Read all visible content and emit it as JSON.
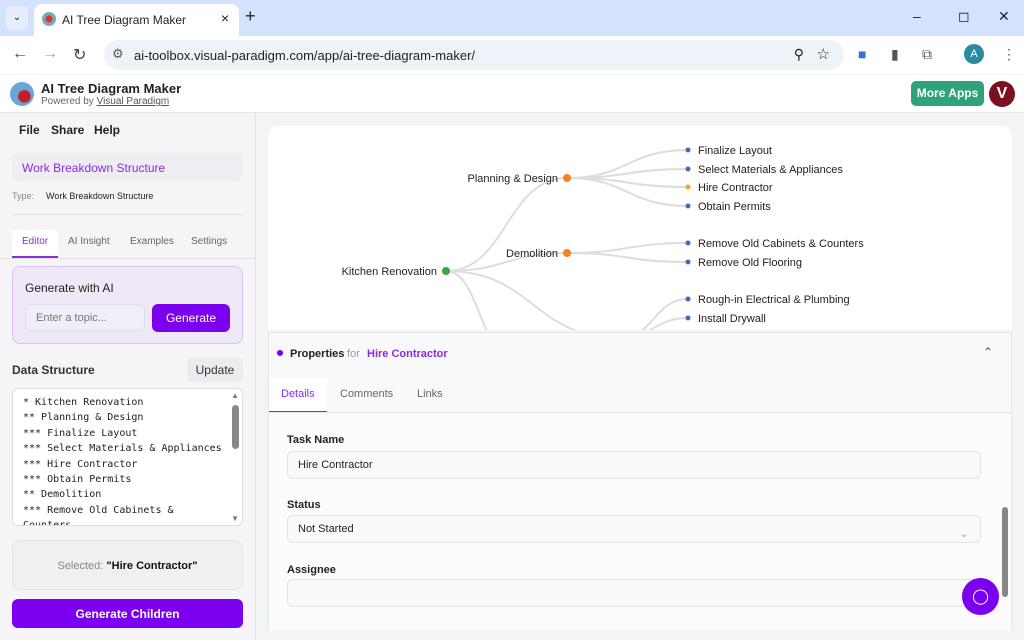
{
  "browser": {
    "tab_title": "AI Tree Diagram Maker",
    "url": "ai-toolbox.visual-paradigm.com/app/ai-tree-diagram-maker/",
    "profile_initial": "A"
  },
  "app": {
    "title": "AI Tree Diagram Maker",
    "powered_prefix": "Powered by",
    "powered_link": "Visual Paradigm",
    "more_apps": "More Apps",
    "user_initial": "V",
    "accent": "#7b00f0",
    "more_apps_color": "#2ea37a"
  },
  "sidebar": {
    "menu": [
      "File",
      "Share",
      "Help"
    ],
    "diagram_name": "Work Breakdown Structure",
    "type_label": "Type:",
    "type_value": "Work Breakdown Structure",
    "tabs": [
      "Editor",
      "AI Insight",
      "Examples",
      "Settings"
    ],
    "active_tab": "Editor",
    "generate": {
      "heading": "Generate with AI",
      "placeholder": "Enter a topic...",
      "button": "Generate"
    },
    "data_structure": {
      "label": "Data Structure",
      "update": "Update",
      "text": "* Kitchen Renovation\n** Planning & Design\n*** Finalize Layout\n*** Select Materials & Appliances\n*** Hire Contractor\n*** Obtain Permits\n** Demolition\n*** Remove Old Cabinets &\nCounters"
    },
    "selected_label": "Selected:",
    "selected_value": "\"Hire Contractor\"",
    "generate_children": "Generate Children"
  },
  "diagram": {
    "root": "Kitchen Renovation",
    "branches": [
      {
        "label": "Planning & Design",
        "children": [
          "Finalize Layout",
          "Select Materials & Appliances",
          "Hire Contractor",
          "Obtain Permits"
        ]
      },
      {
        "label": "Demolition",
        "children": [
          "Remove Old Cabinets & Counters",
          "Remove Old Flooring"
        ]
      },
      {
        "label": "",
        "children": [
          "Rough-in Electrical & Plumbing",
          "Install Drywall"
        ]
      }
    ],
    "selected": "Hire Contractor",
    "colors": {
      "root": "#3aa63a",
      "branch": "#f5821f",
      "leaf": "#3b6fb6",
      "selected": "#f5a623",
      "edge": "#dddddd"
    }
  },
  "properties": {
    "heading": "Properties",
    "for": "for",
    "selected": "Hire Contractor",
    "tabs": [
      "Details",
      "Comments",
      "Links"
    ],
    "active_tab": "Details",
    "fields": {
      "task_name_label": "Task Name",
      "task_name_value": "Hire Contractor",
      "status_label": "Status",
      "status_value": "Not Started",
      "assignee_label": "Assignee",
      "assignee_value": ""
    }
  }
}
